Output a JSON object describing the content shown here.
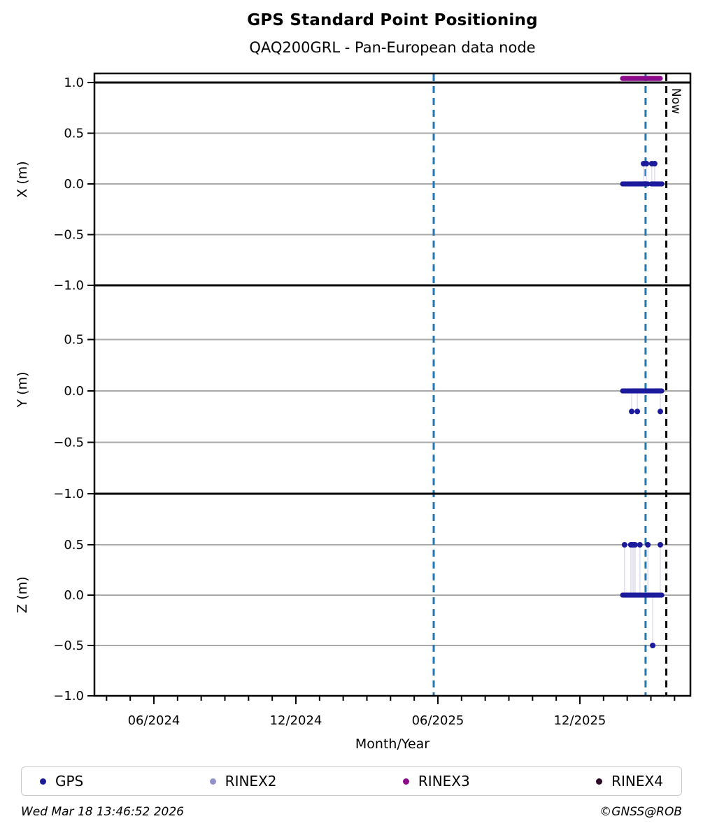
{
  "header": {
    "title": "GPS Standard Point Positioning",
    "subtitle": "QAQ200GRL - Pan-European data node"
  },
  "chart_data": {
    "type": "scatter",
    "title": "GPS Standard Point Positioning",
    "subtitle": "QAQ200GRL - Pan-European data node",
    "xlabel": "Month/Year",
    "x_unit": "decimal_year",
    "xlim": [
      2024.21,
      2026.31
    ],
    "grid": true,
    "legend_position": "bottom",
    "xticks": [
      {
        "x": 2024.4167,
        "label": "06/2024"
      },
      {
        "x": 2024.9167,
        "label": "12/2024"
      },
      {
        "x": 2025.4167,
        "label": "06/2025"
      },
      {
        "x": 2025.9167,
        "label": "12/2025"
      }
    ],
    "minor_ticks_monthly": {
      "start": 2024.25,
      "end": 2026.25,
      "step": 0.083333
    },
    "event_lines": [
      {
        "x": 2025.402,
        "color": "#1f77b4",
        "style": "dashed"
      },
      {
        "x": 2026.148,
        "color": "#1f77b4",
        "style": "dashed"
      }
    ],
    "now_line": {
      "x": 2026.221,
      "color": "#000000",
      "style": "dashed",
      "label": "Now"
    },
    "panels": [
      {
        "ylabel": "X (m)",
        "ylim": [
          -1.0,
          1.1
        ],
        "yticks": [
          1.0,
          0.5,
          0.0,
          -0.5,
          -1.0
        ],
        "grid_values": [
          0.5,
          0.0,
          -0.5
        ],
        "series": [
          {
            "name": "RINEX3",
            "color": "#8b0b8b",
            "runs": [
              {
                "start": 2026.067,
                "end": 2026.202,
                "value": 1.04
              }
            ],
            "outliers": []
          },
          {
            "name": "GPS",
            "color": "#1b1b9c",
            "runs": [
              {
                "start": 2026.067,
                "end": 2026.157,
                "value": 0.0
              },
              {
                "start": 2026.168,
                "end": 2026.207,
                "value": 0.0
              }
            ],
            "outliers": [
              {
                "x": 2026.141,
                "y": 0.2
              },
              {
                "x": 2026.151,
                "y": 0.2
              },
              {
                "x": 2026.17,
                "y": 0.2
              },
              {
                "x": 2026.18,
                "y": 0.2
              }
            ]
          }
        ]
      },
      {
        "ylabel": "Y (m)",
        "ylim": [
          -1.0,
          1.05
        ],
        "yticks": [
          0.5,
          0.0,
          -0.5,
          -1.0
        ],
        "grid_values": [
          0.5,
          0.0,
          -0.5
        ],
        "series": [
          {
            "name": "GPS",
            "color": "#1b1b9c",
            "runs": [
              {
                "start": 2026.067,
                "end": 2026.207,
                "value": 0.0
              }
            ],
            "outliers": [
              {
                "x": 2026.099,
                "y": -0.2
              },
              {
                "x": 2026.119,
                "y": -0.2
              },
              {
                "x": 2026.2,
                "y": -0.2
              }
            ]
          }
        ]
      },
      {
        "ylabel": "Z (m)",
        "ylim": [
          -1.0,
          1.05
        ],
        "yticks": [
          0.5,
          0.0,
          -0.5,
          -1.0
        ],
        "grid_values": [
          0.5,
          0.0,
          -0.5
        ],
        "series": [
          {
            "name": "GPS",
            "color": "#1b1b9c",
            "runs": [
              {
                "start": 2026.067,
                "end": 2026.207,
                "value": 0.0
              }
            ],
            "outliers": [
              {
                "x": 2026.074,
                "y": 0.5
              },
              {
                "x": 2026.096,
                "y": 0.5
              },
              {
                "x": 2026.101,
                "y": 0.5
              },
              {
                "x": 2026.106,
                "y": 0.5
              },
              {
                "x": 2026.111,
                "y": 0.5
              },
              {
                "x": 2026.128,
                "y": 0.5
              },
              {
                "x": 2026.156,
                "y": 0.5
              },
              {
                "x": 2026.2,
                "y": 0.5
              },
              {
                "x": 2026.173,
                "y": -0.5
              }
            ]
          }
        ]
      }
    ],
    "colors": {
      "grid": "#a9a9a9",
      "connector": "#dcdcf0",
      "frame": "#000000"
    }
  },
  "legend": {
    "items": [
      {
        "label": "GPS",
        "color": "#1b1b9c"
      },
      {
        "label": "RINEX2",
        "color": "#9191cc"
      },
      {
        "label": "RINEX3",
        "color": "#8b0b8b"
      },
      {
        "label": "RINEX4",
        "color": "#2e0b29"
      }
    ]
  },
  "footer": {
    "timestamp": "Wed Mar 18 13:46:52 2026",
    "credit": "©GNSS@ROB"
  }
}
